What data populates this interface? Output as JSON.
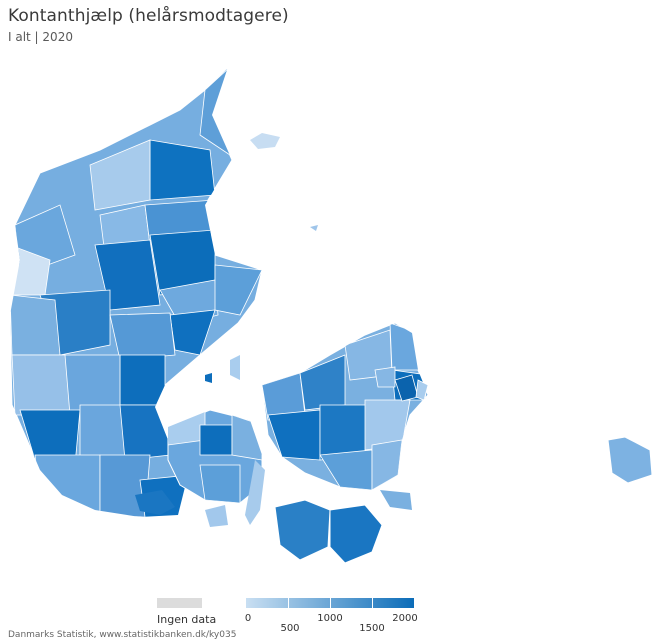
{
  "title": "Kontanthjælp (helårsmodtagere)",
  "subtitle": "I alt | 2020",
  "legend": {
    "nodata_label": "Ingen data",
    "nodata_color": "#dcdcdc",
    "scale_colors": [
      "#c9dff2",
      "#0b6cb8"
    ],
    "scale_labels": [
      "0",
      "500",
      "1000",
      "1500",
      "2000"
    ]
  },
  "source": "Danmarks Statistik, www.statistikbanken.dk/ky035"
}
